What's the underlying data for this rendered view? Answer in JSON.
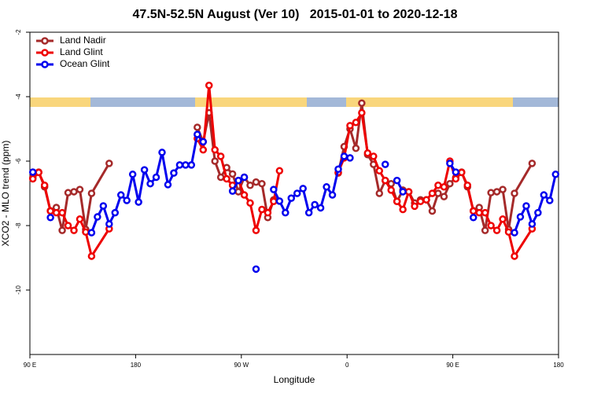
{
  "chart_data": {
    "type": "line",
    "title": "47.5N-52.5N August (Ver 10)   2015-01-01 to 2020-12-18",
    "x_label": "Longitude",
    "y_label": "XCO2 - MLO trend (ppm)",
    "xlim": [
      90,
      540
    ],
    "ylim": [
      -12,
      -2
    ],
    "xticks": [
      {
        "value": 90,
        "label": "90 E"
      },
      {
        "value": 180,
        "label": "180"
      },
      {
        "value": 270,
        "label": "90 W"
      },
      {
        "value": 360,
        "label": "0"
      },
      {
        "value": 450,
        "label": "90 E"
      },
      {
        "value": 540,
        "label": "180"
      }
    ],
    "yticks": [
      -2,
      -4,
      -6,
      -8,
      -10
    ],
    "legend": "top-left",
    "series": [
      {
        "name": "Land Nadir",
        "color": "#a52a2a",
        "x": [
          92.5,
          97.5,
          102.5,
          107.5,
          112.5,
          117.5,
          122.5,
          127.5,
          132.5,
          137.5,
          142.5,
          157.5,
          162.5,
          232.5,
          237.5,
          242.5,
          247.5,
          252.5,
          257.5,
          262.5,
          267.5,
          272.5,
          277.5,
          282.5,
          287.5,
          292.5,
          297.5,
          302.5,
          352.5,
          357.5,
          362.5,
          367.5,
          372.5,
          377.5,
          382.5,
          387.5,
          392.5,
          397.5,
          402.5,
          407.5,
          412.5,
          417.5,
          422.5,
          427.5,
          432.5,
          437.5,
          442.5,
          447.5,
          452.5,
          457.5,
          462.5,
          467.5,
          472.5,
          477.5,
          482.5,
          487.5,
          492.5,
          497.5,
          502.5,
          517.5
        ],
        "values": [
          -6.51,
          -6.34,
          -6.8,
          -7.54,
          -7.44,
          -8.15,
          -6.98,
          -6.95,
          -6.88,
          -8.12,
          -7.0,
          -6.07,
          null,
          -4.95,
          -5.4,
          -4.5,
          -6.0,
          -6.5,
          -6.2,
          -6.4,
          -6.95,
          -6.5,
          -6.75,
          -6.65,
          -6.7,
          -7.75,
          -7.2,
          null,
          -6.37,
          -5.55,
          -5.0,
          -5.6,
          -4.2,
          -5.8,
          -6.1,
          -7.0,
          -6.6,
          -6.7,
          -7.25,
          -6.9,
          -6.95,
          -7.3,
          -7.2,
          -7.2,
          -7.55,
          -7.0,
          -7.1,
          -6.7,
          -6.51,
          -6.34,
          -6.8,
          -7.54,
          -7.44,
          -8.15,
          -6.98,
          -6.95,
          -6.88,
          -8.12,
          -7.0,
          -6.07
        ]
      },
      {
        "name": "Land Glint",
        "color": "#ee0000",
        "x": [
          92.5,
          97.5,
          102.5,
          107.5,
          112.5,
          117.5,
          122.5,
          127.5,
          132.5,
          137.5,
          142.5,
          157.5,
          162.5,
          232.5,
          237.5,
          242.5,
          247.5,
          252.5,
          257.5,
          262.5,
          267.5,
          272.5,
          277.5,
          282.5,
          287.5,
          292.5,
          297.5,
          302.5,
          307.5,
          352.5,
          357.5,
          362.5,
          367.5,
          372.5,
          377.5,
          382.5,
          387.5,
          392.5,
          397.5,
          402.5,
          407.5,
          412.5,
          417.5,
          422.5,
          427.5,
          432.5,
          437.5,
          442.5,
          447.5,
          452.5,
          457.5,
          462.5,
          467.5,
          472.5,
          477.5,
          482.5,
          487.5,
          492.5,
          497.5,
          502.5,
          517.5
        ],
        "values": [
          -6.55,
          -6.35,
          -6.75,
          -7.55,
          -7.6,
          -7.6,
          -8.0,
          -8.15,
          -7.8,
          -8.2,
          -8.95,
          -8.1,
          null,
          -5.3,
          -5.65,
          -3.65,
          -5.65,
          -5.85,
          -6.55,
          -6.75,
          -6.6,
          -7.05,
          -7.3,
          -8.15,
          -7.5,
          -7.6,
          -7.25,
          -6.3,
          null,
          -6.35,
          -5.9,
          -4.9,
          -4.8,
          -4.5,
          -5.75,
          -5.85,
          -6.3,
          -6.6,
          -6.9,
          -7.25,
          -7.5,
          -6.95,
          -7.4,
          -7.25,
          -7.2,
          -7.0,
          -6.75,
          -6.8,
          -6.0,
          -6.55,
          -6.35,
          -6.75,
          -7.55,
          -7.6,
          -7.6,
          -8.0,
          -8.15,
          -7.8,
          -8.2,
          -8.95,
          -8.1
        ]
      },
      {
        "name": "Ocean Glint",
        "color": "#0000ee",
        "x": [
          92.5,
          97.5,
          107.5,
          112.5,
          142.5,
          147.5,
          152.5,
          157.5,
          162.5,
          167.5,
          172.5,
          177.5,
          182.5,
          187.5,
          192.5,
          197.5,
          202.5,
          207.5,
          212.5,
          217.5,
          222.5,
          227.5,
          232.5,
          237.5,
          242.5,
          262.5,
          267.5,
          272.5,
          277.5,
          282.5,
          287.5,
          297.5,
          302.5,
          307.5,
          312.5,
          317.5,
          322.5,
          327.5,
          332.5,
          337.5,
          342.5,
          347.5,
          352.5,
          357.5,
          362.5,
          367.5,
          392.5,
          397.5,
          402.5,
          407.5,
          412.5,
          447.5,
          452.5,
          457.5,
          467.5,
          472.5,
          502.5,
          507.5,
          512.5,
          517.5,
          522.5,
          527.5,
          532.5,
          537.5
        ],
        "values": [
          -6.34,
          null,
          -7.75,
          null,
          -8.22,
          -7.73,
          -7.39,
          -7.95,
          -7.6,
          -7.05,
          -7.22,
          -6.41,
          -7.27,
          -6.27,
          -6.7,
          -6.5,
          -5.73,
          -6.73,
          -6.37,
          -6.12,
          -6.12,
          -6.12,
          -5.17,
          -5.4,
          null,
          -6.93,
          -6.6,
          -6.5,
          null,
          -9.35,
          null,
          -6.88,
          -7.24,
          -7.6,
          -7.15,
          -7.0,
          -6.85,
          -7.6,
          -7.35,
          -7.45,
          -6.8,
          -7.05,
          -6.25,
          -5.85,
          -5.9,
          null,
          -6.1,
          null,
          -6.6,
          -6.95,
          null,
          -6.07,
          -6.34,
          null,
          -7.75,
          null,
          -8.22,
          -7.73,
          -7.39,
          -7.95,
          -7.6,
          -7.05,
          -7.22,
          -6.41
        ]
      }
    ]
  }
}
